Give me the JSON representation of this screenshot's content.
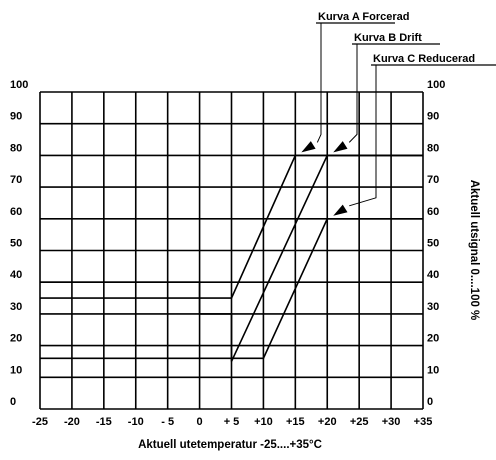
{
  "chart_data": {
    "type": "line",
    "xlabel": "Aktuell utetemperatur -25....+35°C",
    "ylabel": "Aktuell utsignal 0....100 %",
    "xlim": [
      -25,
      35
    ],
    "ylim": [
      0,
      100
    ],
    "x_ticks": [
      "-25",
      "-20",
      "-15",
      "-10",
      "- 5",
      "0",
      "+ 5",
      "+10",
      "+15",
      "+20",
      "+25",
      "+30",
      "+35"
    ],
    "y_ticks": [
      "0",
      "10",
      "20",
      "30",
      "40",
      "50",
      "60",
      "70",
      "80",
      "90",
      "100"
    ],
    "grid": true,
    "series": [
      {
        "name": "Kurva A Forcerad",
        "x": [
          -25,
          5,
          15,
          35
        ],
        "y": [
          35,
          35,
          80,
          80
        ]
      },
      {
        "name": "Kurva B Drift",
        "x": [
          -25,
          0,
          0,
          5,
          5,
          20,
          35
        ],
        "y": [
          40,
          40,
          30,
          30,
          15,
          80,
          80
        ]
      },
      {
        "name": "Kurva C Reducerad",
        "x": [
          -25,
          10,
          20,
          35
        ],
        "y": [
          16,
          16,
          60,
          60
        ]
      }
    ]
  }
}
